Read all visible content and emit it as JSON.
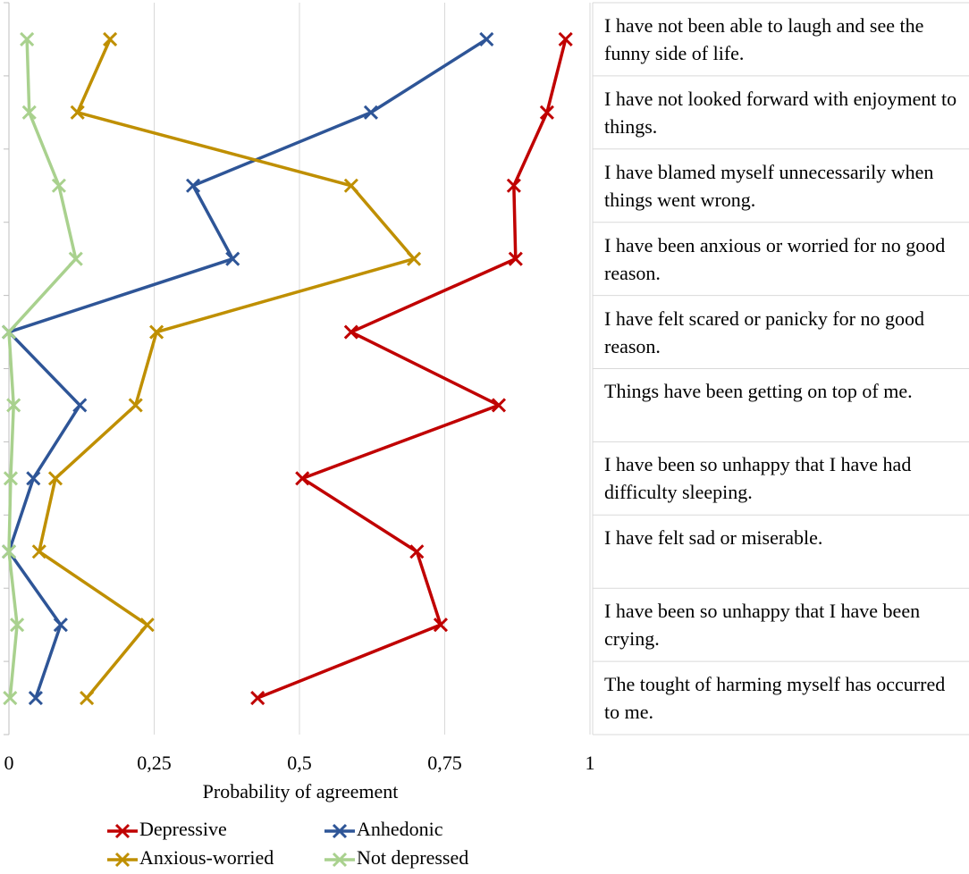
{
  "chart_data": {
    "type": "line",
    "x_label": "Probability of agreement",
    "categories": [
      "I have not been able to laugh and see the funny side of life.",
      "I have not looked forward with enjoyment to things.",
      "I have blamed myself unnecessarily when things went wrong.",
      "I have been anxious or worried for no good reason.",
      "I have felt scared or panicky for no good reason.",
      "Things have been getting on top of me.",
      "I have been so unhappy that I have had difficulty sleeping.",
      "I have felt sad or miserable.",
      "I have been so unhappy that I have been crying.",
      "The tought of harming myself has occurred to me."
    ],
    "series": [
      {
        "name": "Depressive",
        "color": "#c00000",
        "values": [
          0.958,
          0.926,
          0.869,
          0.872,
          0.589,
          0.843,
          0.505,
          0.702,
          0.743,
          0.428
        ]
      },
      {
        "name": "Anhedonic",
        "color": "#2e5597",
        "values": [
          0.822,
          0.623,
          0.317,
          0.385,
          0,
          0.122,
          0.042,
          0,
          0.089,
          0.046
        ]
      },
      {
        "name": "Anxious-worried",
        "color": "#bf8f00",
        "values": [
          0.174,
          0.118,
          0.589,
          0.697,
          0.254,
          0.218,
          0.08,
          0.052,
          0.238,
          0.134
        ]
      },
      {
        "name": "Not depressed",
        "color": "#a9d18e",
        "values": [
          0.031,
          0.035,
          0.086,
          0.115,
          0,
          0.008,
          0.003,
          0,
          0.014,
          0.002
        ]
      }
    ],
    "xlim": [
      0,
      1
    ],
    "xticks": [
      0,
      {
        "value": 0.25,
        "label": "0,25"
      },
      {
        "value": 0.5,
        "label": "0,5"
      },
      {
        "value": 0.75,
        "label": "0,75"
      },
      1
    ],
    "grid": true,
    "legend": "bottom"
  }
}
